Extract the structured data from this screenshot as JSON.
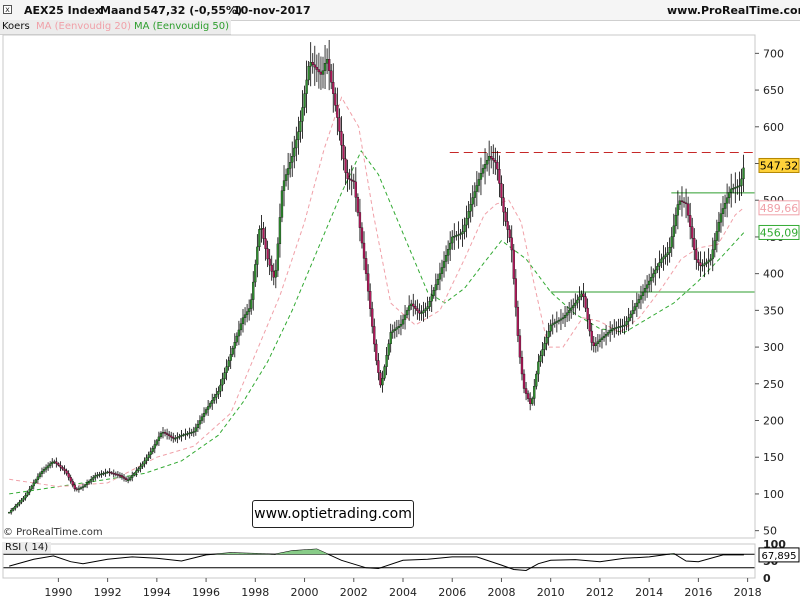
{
  "header": {
    "instrument": "AEX25 Index",
    "timeframe": "Maand",
    "last": "547,32 (-0,55%)",
    "date": "10-nov-2017",
    "site": "www.ProRealTime.com",
    "close_glyph": "x"
  },
  "legend": {
    "koers": "Koers",
    "ma20": "MA (Eenvoudig 20)",
    "ma50": "MA (Eenvoudig 50)"
  },
  "watermark": "www.optietrading.com",
  "copyright": "© ProRealTime.com",
  "colors": {
    "price": "#000000",
    "up_candle": "#2e8b2e",
    "down_candle": "#b0185a",
    "ma20": "#f0a0a8",
    "ma50": "#33aa33",
    "resistance": "#c62828",
    "support": "#2e9e2e",
    "price_label_bg": "#ffd23a",
    "rsi_fill": "#88cc88"
  },
  "chart_data": [
    {
      "type": "line",
      "title": "AEX25 Index",
      "ylabel": "",
      "scale": "linear",
      "ylim": [
        40,
        725
      ],
      "xlim": [
        1987.75,
        2018.3
      ],
      "x_ticks": [
        "1990",
        "1992",
        "1994",
        "1996",
        "1998",
        "2000",
        "2002",
        "2004",
        "2006",
        "2008",
        "2010",
        "2012",
        "2014",
        "2016",
        "2018"
      ],
      "y_ticks": [
        "50",
        "100",
        "150",
        "200",
        "250",
        "300",
        "350",
        "400",
        "450",
        "500",
        "550",
        "600",
        "650",
        "700"
      ],
      "series": [
        {
          "name": "Koers",
          "x": [
            1988.0,
            1988.6,
            1989.3,
            1989.8,
            1990.3,
            1990.7,
            1991.0,
            1991.5,
            1992.0,
            1992.5,
            1992.8,
            1993.4,
            1993.8,
            1994.2,
            1994.7,
            1995.0,
            1995.5,
            1996.0,
            1996.5,
            1997.0,
            1997.5,
            1997.8,
            1998.2,
            1998.5,
            1998.8,
            1999.1,
            1999.5,
            1999.8,
            2000.2,
            2000.7,
            2000.9,
            2001.3,
            2001.7,
            2002.0,
            2002.5,
            2002.9,
            2003.1,
            2003.5,
            2003.9,
            2004.3,
            2004.7,
            2005.0,
            2005.5,
            2006.0,
            2006.4,
            2006.8,
            2007.2,
            2007.5,
            2007.8,
            2008.1,
            2008.4,
            2008.7,
            2008.9,
            2009.2,
            2009.5,
            2010.0,
            2010.5,
            2011.0,
            2011.3,
            2011.7,
            2012.0,
            2012.5,
            2013.0,
            2013.5,
            2014.0,
            2014.5,
            2014.8,
            2015.2,
            2015.5,
            2015.9,
            2016.1,
            2016.5,
            2016.9,
            2017.3,
            2017.7,
            2017.85
          ],
          "values": [
            75,
            95,
            130,
            145,
            130,
            105,
            110,
            125,
            130,
            125,
            118,
            140,
            160,
            185,
            175,
            180,
            185,
            215,
            240,
            290,
            340,
            355,
            470,
            420,
            390,
            520,
            560,
            600,
            690,
            670,
            695,
            620,
            530,
            525,
            400,
            285,
            245,
            320,
            330,
            360,
            345,
            355,
            400,
            450,
            455,
            500,
            540,
            560,
            550,
            480,
            440,
            300,
            245,
            220,
            280,
            330,
            340,
            360,
            375,
            300,
            310,
            325,
            330,
            360,
            390,
            420,
            430,
            500,
            495,
            420,
            410,
            420,
            480,
            515,
            520,
            547
          ]
        },
        {
          "name": "MA (Eenvoudig 20)",
          "x": [
            1988.0,
            1990.0,
            1992.0,
            1994.0,
            1995.5,
            1997.0,
            1998.0,
            1999.0,
            2000.0,
            2000.8,
            2001.5,
            2002.2,
            2002.8,
            2003.5,
            2004.5,
            2005.5,
            2006.5,
            2007.3,
            2007.8,
            2008.3,
            2008.8,
            2009.3,
            2009.9,
            2010.5,
            2011.3,
            2012.0,
            2012.8,
            2013.6,
            2014.5,
            2015.3,
            2016.0,
            2016.8,
            2017.5,
            2017.85
          ],
          "values": [
            120,
            110,
            115,
            150,
            165,
            210,
            290,
            370,
            470,
            570,
            640,
            600,
            480,
            360,
            330,
            350,
            420,
            480,
            495,
            500,
            470,
            390,
            300,
            300,
            340,
            335,
            320,
            340,
            380,
            420,
            435,
            440,
            480,
            490
          ]
        },
        {
          "name": "MA (Eenvoudig 50)",
          "x": [
            1988.0,
            1990.0,
            1992.0,
            1993.5,
            1995.0,
            1996.5,
            1997.5,
            1998.5,
            1999.5,
            2000.5,
            2001.5,
            2002.3,
            2003.0,
            2004.0,
            2005.0,
            2005.7,
            2006.5,
            2007.3,
            2008.0,
            2009.0,
            2010.0,
            2011.0,
            2012.0,
            2013.0,
            2014.0,
            2015.0,
            2016.0,
            2017.0,
            2017.85
          ],
          "values": [
            100,
            110,
            120,
            128,
            145,
            180,
            225,
            280,
            350,
            430,
            510,
            567,
            535,
            455,
            375,
            360,
            380,
            415,
            445,
            420,
            375,
            345,
            325,
            320,
            340,
            360,
            390,
            425,
            456
          ]
        }
      ],
      "reference_lines": [
        {
          "style": "dashed",
          "color": "#c62828",
          "value": 565,
          "x_from": 2005.9,
          "x_to": 2018.3
        },
        {
          "style": "solid",
          "color": "#2e9e2e",
          "value": 510,
          "x_from": 2014.9,
          "x_to": 2018.3
        },
        {
          "style": "solid",
          "color": "#2e9e2e",
          "value": 375,
          "x_from": 2010.0,
          "x_to": 2018.3
        }
      ],
      "value_labels": [
        {
          "text": "547,32",
          "value": 547.32
        },
        {
          "text": "489,66",
          "value": 489.66
        },
        {
          "text": "456,09",
          "value": 456.09
        }
      ],
      "grid": false,
      "legend_position": "top-left"
    },
    {
      "type": "line",
      "title": "RSI ( 14)",
      "ylim": [
        0,
        100
      ],
      "y_ticks": [
        "100",
        "50",
        "0"
      ],
      "reference_levels": [
        70,
        30
      ],
      "series": [
        {
          "name": "RSI ( 14)",
          "x": [
            1988.0,
            1989.0,
            1989.8,
            1990.5,
            1991.0,
            1992.0,
            1993.0,
            1994.0,
            1995.0,
            1996.0,
            1997.0,
            1998.0,
            1998.8,
            1999.5,
            2000.5,
            2001.5,
            2002.5,
            2003.0,
            2004.0,
            2005.0,
            2006.0,
            2007.0,
            2008.0,
            2008.5,
            2009.0,
            2009.5,
            2010.0,
            2011.0,
            2012.0,
            2013.0,
            2014.0,
            2015.0,
            2015.5,
            2016.0,
            2017.0,
            2017.85
          ],
          "values": [
            35,
            55,
            65,
            48,
            42,
            55,
            62,
            58,
            50,
            68,
            74,
            72,
            70,
            80,
            85,
            52,
            30,
            28,
            52,
            55,
            62,
            62,
            38,
            25,
            22,
            42,
            52,
            54,
            48,
            58,
            62,
            72,
            50,
            48,
            68,
            67.895
          ]
        }
      ],
      "value_label": "67,895"
    }
  ]
}
